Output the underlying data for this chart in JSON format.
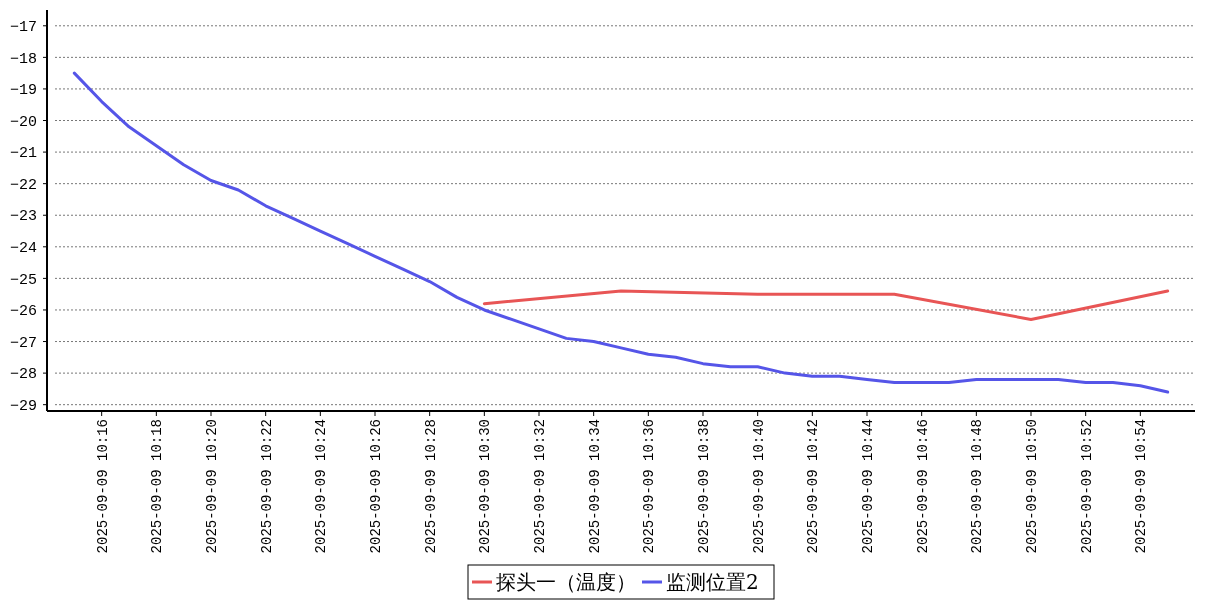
{
  "chart_data": {
    "type": "line",
    "xlim": [
      "2025-09-09T10:14",
      "2025-09-09T10:56"
    ],
    "ylim": [
      -29.2,
      -16.5
    ],
    "xticks": [
      {
        "value": "2025-09-09T10:16",
        "label": "2025-09-09 10:16"
      },
      {
        "value": "2025-09-09T10:18",
        "label": "2025-09-09 10:18"
      },
      {
        "value": "2025-09-09T10:20",
        "label": "2025-09-09 10:20"
      },
      {
        "value": "2025-09-09T10:22",
        "label": "2025-09-09 10:22"
      },
      {
        "value": "2025-09-09T10:24",
        "label": "2025-09-09 10:24"
      },
      {
        "value": "2025-09-09T10:26",
        "label": "2025-09-09 10:26"
      },
      {
        "value": "2025-09-09T10:28",
        "label": "2025-09-09 10:28"
      },
      {
        "value": "2025-09-09T10:30",
        "label": "2025-09-09 10:30"
      },
      {
        "value": "2025-09-09T10:32",
        "label": "2025-09-09 10:32"
      },
      {
        "value": "2025-09-09T10:34",
        "label": "2025-09-09 10:34"
      },
      {
        "value": "2025-09-09T10:36",
        "label": "2025-09-09 10:36"
      },
      {
        "value": "2025-09-09T10:38",
        "label": "2025-09-09 10:38"
      },
      {
        "value": "2025-09-09T10:40",
        "label": "2025-09-09 10:40"
      },
      {
        "value": "2025-09-09T10:42",
        "label": "2025-09-09 10:42"
      },
      {
        "value": "2025-09-09T10:44",
        "label": "2025-09-09 10:44"
      },
      {
        "value": "2025-09-09T10:46",
        "label": "2025-09-09 10:46"
      },
      {
        "value": "2025-09-09T10:48",
        "label": "2025-09-09 10:48"
      },
      {
        "value": "2025-09-09T10:50",
        "label": "2025-09-09 10:50"
      },
      {
        "value": "2025-09-09T10:52",
        "label": "2025-09-09 10:52"
      },
      {
        "value": "2025-09-09T10:54",
        "label": "2025-09-09 10:54"
      }
    ],
    "yticks": [
      -29,
      -28,
      -27,
      -26,
      -25,
      -24,
      -23,
      -22,
      -21,
      -20,
      -19,
      -18,
      -17
    ],
    "grid": "y",
    "legend": "bottom",
    "marker": "none",
    "line_style": "solid",
    "series": [
      {
        "name": "探头一（温度）",
        "color": "#e85555",
        "x": [
          "2025-09-09T10:30",
          "2025-09-09T10:35",
          "2025-09-09T10:40",
          "2025-09-09T10:45",
          "2025-09-09T10:50",
          "2025-09-09T10:55"
        ],
        "values": [
          -25.8,
          -25.4,
          -25.5,
          -25.5,
          -26.3,
          -25.4
        ]
      },
      {
        "name": "监测位置2",
        "color": "#5555e8",
        "x": [
          "2025-09-09T10:15",
          "2025-09-09T10:16",
          "2025-09-09T10:17",
          "2025-09-09T10:18",
          "2025-09-09T10:19",
          "2025-09-09T10:20",
          "2025-09-09T10:21",
          "2025-09-09T10:22",
          "2025-09-09T10:23",
          "2025-09-09T10:24",
          "2025-09-09T10:25",
          "2025-09-09T10:26",
          "2025-09-09T10:27",
          "2025-09-09T10:28",
          "2025-09-09T10:29",
          "2025-09-09T10:30",
          "2025-09-09T10:31",
          "2025-09-09T10:32",
          "2025-09-09T10:33",
          "2025-09-09T10:34",
          "2025-09-09T10:35",
          "2025-09-09T10:36",
          "2025-09-09T10:37",
          "2025-09-09T10:38",
          "2025-09-09T10:39",
          "2025-09-09T10:40",
          "2025-09-09T10:41",
          "2025-09-09T10:42",
          "2025-09-09T10:43",
          "2025-09-09T10:44",
          "2025-09-09T10:45",
          "2025-09-09T10:46",
          "2025-09-09T10:47",
          "2025-09-09T10:48",
          "2025-09-09T10:49",
          "2025-09-09T10:50",
          "2025-09-09T10:51",
          "2025-09-09T10:52",
          "2025-09-09T10:53",
          "2025-09-09T10:54",
          "2025-09-09T10:55"
        ],
        "values": [
          -18.5,
          -19.4,
          -20.2,
          -20.8,
          -21.4,
          -21.9,
          -22.2,
          -22.7,
          -23.1,
          -23.5,
          -23.9,
          -24.3,
          -24.7,
          -25.1,
          -25.6,
          -26.0,
          -26.3,
          -26.6,
          -26.9,
          -27.0,
          -27.2,
          -27.4,
          -27.5,
          -27.7,
          -27.8,
          -27.8,
          -28.0,
          -28.1,
          -28.1,
          -28.2,
          -28.3,
          -28.3,
          -28.3,
          -28.2,
          -28.2,
          -28.2,
          -28.2,
          -28.3,
          -28.3,
          -28.4,
          -28.6
        ]
      }
    ]
  }
}
